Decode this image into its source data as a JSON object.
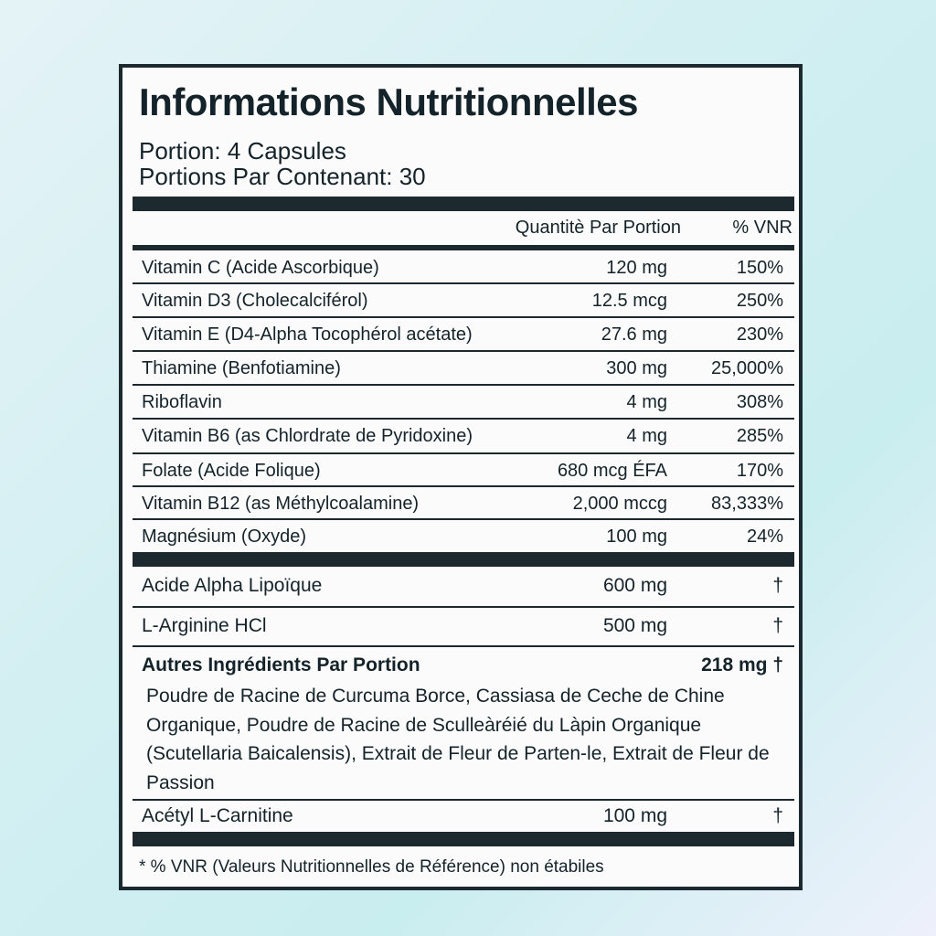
{
  "title": "Informations Nutritionnelles",
  "serving_size": "Portion: 4 Capsules",
  "servings_per_container": "Portions Par Contenant: 30",
  "header": {
    "amount": "Quantitè Par Portion",
    "dv": "% VNR"
  },
  "vitamins": [
    {
      "name": "Vitamin C (Acide Ascorbique)",
      "amount": "120 mg",
      "dv": "150%"
    },
    {
      "name": "Vitamin D3 (Cholecalciférol)",
      "amount": "12.5 mcg",
      "dv": "250%"
    },
    {
      "name": "Vitamin E (D4-Alpha Tocophérol acétate)",
      "amount": "27.6 mg",
      "dv": "230%"
    },
    {
      "name": "Thiamine (Benfotiamine)",
      "amount": "300 mg",
      "dv": "25,000%"
    },
    {
      "name": "Riboflavin",
      "amount": "4 mg",
      "dv": "308%"
    },
    {
      "name": "Vitamin B6 (as Chlordrate  de Pyridoxine)",
      "amount": "4 mg",
      "dv": "285%"
    },
    {
      "name": "Folate (Acide Folique)",
      "amount": "680 mcg ÉFA",
      "dv": "170%"
    },
    {
      "name": "Vitamin B12 (as Méthylcoalamine)",
      "amount": "2,000 mccg",
      "dv": "83,333%"
    },
    {
      "name": "Magnésium (Oxyde)",
      "amount": "100 mg",
      "dv": "24%"
    }
  ],
  "others": [
    {
      "name": "Acide Alpha Lipoïque",
      "amount": "600 mg",
      "dv": "†"
    },
    {
      "name": "L-Arginine HCl",
      "amount": "500 mg",
      "dv": "†"
    }
  ],
  "blend": {
    "name": "Autres Ingrédients Par Portion",
    "amount": "218 mg †",
    "ingredients": "Poudre de Racine de Curcuma Borce, Cassiasa de Ceche de Chine Organique, Poudre de Racine de Sculleàréié du Làpin Organique (Scutellaria Baicalensis), Extrait de Fleur de Parten-le, Extrait de Fleur de Passion"
  },
  "last": {
    "name": "Acétyl L-Carnitine",
    "amount": "100 mg",
    "dv": "†"
  },
  "footnote": "* % VNR (Valeurs Nutritionnelles de Référence) non étabiles"
}
